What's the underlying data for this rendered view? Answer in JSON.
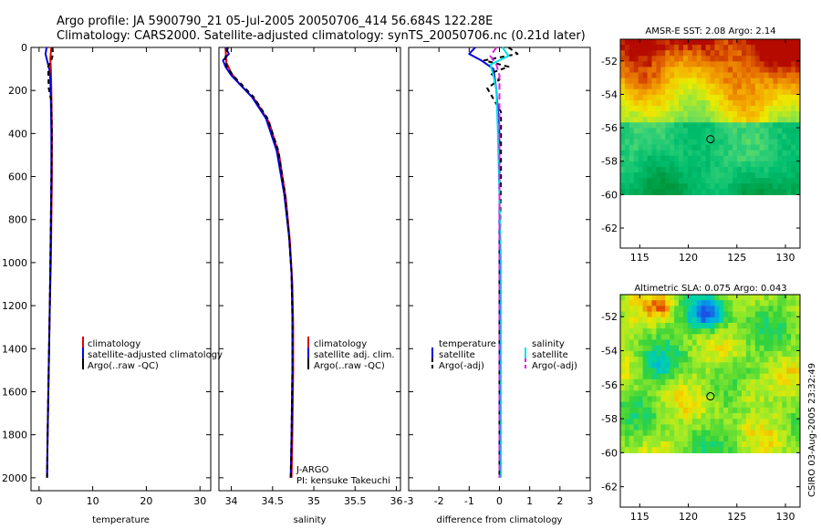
{
  "header": {
    "line1": "Argo profile: JA 5900790_21 05-Jul-2005 20050706_414 56.684S 122.28E",
    "line2": "Climatology: CARS2000. Satellite-adjusted climatology: synTS_20050706.nc (0.21d later)"
  },
  "side_label": "CSIRO 03-Aug-2005 23:32:49",
  "colors": {
    "climatology": "#e00000",
    "satellite": "#0000dd",
    "argo": "#000000",
    "cyan": "#00e0e8",
    "magenta": "#e020e0"
  },
  "chart_data": [
    {
      "type": "line",
      "id": "temperature",
      "xlabel": "temperature",
      "xlim": [
        -1.5,
        32
      ],
      "ylim": [
        2060,
        0
      ],
      "xticks": [
        0,
        10,
        20,
        30
      ],
      "xtick_labels": [
        "0",
        "10",
        "20",
        "30"
      ],
      "yticks": [
        0,
        200,
        400,
        600,
        800,
        1000,
        1200,
        1400,
        1600,
        1800,
        2000
      ],
      "ytick_labels": [
        "0",
        "200",
        "400",
        "600",
        "800",
        "1000",
        "1200",
        "1400",
        "1600",
        "1800",
        "2000"
      ],
      "legend": [
        "climatology",
        "satellite-adjusted climatology",
        "Argo(..raw -QC)"
      ],
      "series": [
        {
          "name": "climatology",
          "color": "#e00000",
          "dash": "",
          "width": 2,
          "x": [
            2.3,
            2.1,
            2.2,
            2.3,
            2.4,
            2.4,
            2.3,
            2.2,
            2.0,
            1.8,
            1.6,
            1.5
          ],
          "y": [
            0,
            50,
            100,
            200,
            400,
            600,
            800,
            1000,
            1200,
            1500,
            1800,
            2000
          ]
        },
        {
          "name": "satellite",
          "color": "#0000dd",
          "dash": "",
          "width": 2,
          "x": [
            1.4,
            1.2,
            1.5,
            1.9,
            2.1,
            2.2,
            2.3,
            2.3,
            2.2,
            2.1,
            2.0,
            1.8,
            1.6,
            1.5
          ],
          "y": [
            0,
            30,
            60,
            100,
            150,
            250,
            400,
            600,
            800,
            1000,
            1200,
            1500,
            1800,
            2000
          ]
        },
        {
          "name": "Argo(..raw -QC)",
          "color": "#000000",
          "dash": "5,4",
          "width": 2,
          "x": [
            2.5,
            2.6,
            2.3,
            1.7,
            1.8,
            2.3,
            2.4,
            2.3,
            2.2,
            2.1,
            2.0,
            1.8,
            1.6,
            1.5
          ],
          "y": [
            0,
            30,
            60,
            90,
            190,
            250,
            400,
            600,
            800,
            1000,
            1200,
            1500,
            1800,
            2000
          ]
        }
      ]
    },
    {
      "type": "line",
      "id": "salinity",
      "xlabel": "salinity",
      "xlim": [
        33.85,
        36.05
      ],
      "ylim": [
        2060,
        0
      ],
      "xticks": [
        34,
        34.5,
        35,
        35.5,
        36
      ],
      "xtick_labels": [
        "34",
        "34.5",
        "35",
        "35.5",
        "36"
      ],
      "legend": [
        "climatology",
        "satellite adj. clim.",
        "Argo(..raw -QC)"
      ],
      "annotation": [
        "J-ARGO",
        "PI: kensuke Takeuchi"
      ],
      "series": [
        {
          "name": "climatology",
          "color": "#e00000",
          "dash": "",
          "width": 2,
          "x": [
            33.93,
            33.94,
            34.0,
            34.1,
            34.3,
            34.46,
            34.58,
            34.66,
            34.71,
            34.74,
            34.75,
            34.75,
            34.74,
            34.73
          ],
          "y": [
            0,
            70,
            120,
            170,
            250,
            350,
            500,
            700,
            900,
            1100,
            1300,
            1500,
            1800,
            2000
          ]
        },
        {
          "name": "satellite",
          "color": "#0000dd",
          "dash": "",
          "width": 2,
          "x": [
            33.93,
            33.97,
            33.9,
            33.93,
            34.0,
            34.1,
            34.25,
            34.42,
            34.55,
            34.64,
            34.7,
            34.73,
            34.74,
            34.74,
            34.73,
            34.72
          ],
          "y": [
            0,
            30,
            60,
            90,
            130,
            170,
            230,
            330,
            480,
            680,
            880,
            1050,
            1250,
            1500,
            1800,
            2000
          ]
        },
        {
          "name": "Argo(..raw -QC)",
          "color": "#000000",
          "dash": "5,4",
          "width": 2,
          "x": [
            33.96,
            33.94,
            33.92,
            33.95,
            34.02,
            34.12,
            34.27,
            34.44,
            34.57,
            34.65,
            34.7,
            34.73,
            34.74,
            34.74,
            34.73,
            34.72
          ],
          "y": [
            0,
            30,
            60,
            90,
            130,
            170,
            230,
            330,
            480,
            680,
            880,
            1050,
            1250,
            1500,
            1800,
            2000
          ]
        }
      ]
    },
    {
      "type": "line",
      "id": "difference",
      "xlabel": "difference from climatology",
      "xlim": [
        -3,
        3
      ],
      "ylim": [
        2060,
        0
      ],
      "xticks": [
        -3,
        -2,
        -1,
        0,
        1,
        2,
        3
      ],
      "xtick_labels": [
        "-3",
        "-2",
        "-1",
        "0",
        "1",
        "2",
        "3"
      ],
      "legend_left": [
        "temperature",
        "satellite",
        "Argo(-adj)"
      ],
      "legend_right": [
        "salinity",
        "satellite",
        "Argo(-adj)"
      ],
      "series": [
        {
          "name": "temperature satellite",
          "color": "#0000dd",
          "dash": "",
          "width": 2,
          "x": [
            -0.8,
            -1.0,
            -0.6,
            -0.2,
            -0.1,
            0.0,
            0.0,
            0.0,
            0.0,
            0.0,
            0.0
          ],
          "y": [
            0,
            30,
            60,
            100,
            200,
            400,
            800,
            1200,
            1600,
            1800,
            2000
          ]
        },
        {
          "name": "temperature Argo(-adj)",
          "color": "#000000",
          "dash": "5,4",
          "width": 2,
          "x": [
            0.3,
            0.6,
            -0.5,
            0.3,
            -0.3,
            0.0,
            -0.4,
            0.05,
            0.05,
            0.0,
            0.0,
            0.0
          ],
          "y": [
            0,
            30,
            60,
            90,
            120,
            150,
            190,
            300,
            600,
            1000,
            1500,
            2000
          ]
        },
        {
          "name": "salinity satellite",
          "color": "#00e0e8",
          "dash": "",
          "width": 2,
          "x": [
            0.1,
            0.3,
            -0.3,
            -0.2,
            -0.1,
            -0.05,
            0.0,
            0.05,
            0.05,
            0.05
          ],
          "y": [
            0,
            40,
            80,
            130,
            200,
            400,
            700,
            1000,
            1500,
            2000
          ]
        },
        {
          "name": "salinity Argo(-adj)",
          "color": "#e020e0",
          "dash": "7,4",
          "width": 2,
          "x": [
            -0.1,
            -0.3,
            -0.1,
            0.0,
            0.0,
            0.0,
            0.0,
            0.0,
            0.0
          ],
          "y": [
            0,
            40,
            80,
            130,
            200,
            400,
            800,
            1500,
            2000
          ]
        }
      ]
    },
    {
      "type": "heatmap",
      "id": "sst_map",
      "title": "AMSR-E SST: 2.08 Argo: 2.14",
      "xlim": [
        113,
        131.5
      ],
      "ylim": [
        -63.2,
        -50.7
      ],
      "xticks": [
        115,
        120,
        125,
        130
      ],
      "yticks": [
        -52,
        -54,
        -56,
        -58,
        -60,
        -62
      ],
      "xtick_labels": [
        "115",
        "120",
        "125",
        "130"
      ],
      "ytick_labels": [
        "-52",
        "-54",
        "-56",
        "-58",
        "-60",
        "-62"
      ],
      "data_lat_min": -60,
      "marker": {
        "lon": 122.28,
        "lat": -56.684
      }
    },
    {
      "type": "heatmap",
      "id": "sla_map",
      "title": "Altimetric SLA: 0.075 Argo: 0.043",
      "xlim": [
        113,
        131.5
      ],
      "ylim": [
        -63.2,
        -50.7
      ],
      "xticks": [
        115,
        120,
        125,
        130
      ],
      "yticks": [
        -52,
        -54,
        -56,
        -58,
        -60,
        -62
      ],
      "xtick_labels": [
        "115",
        "120",
        "125",
        "130"
      ],
      "ytick_labels": [
        "-52",
        "-54",
        "-56",
        "-58",
        "-60",
        "-62"
      ],
      "data_lat_min": -60,
      "marker": {
        "lon": 122.28,
        "lat": -56.684
      }
    }
  ]
}
